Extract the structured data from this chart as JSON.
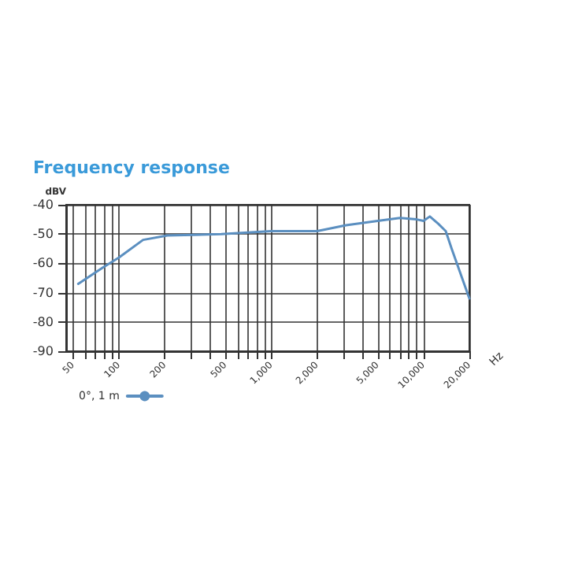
{
  "chart_data": {
    "type": "line",
    "title": "Frequency response",
    "xlabel": "Hz",
    "ylabel": "dBV",
    "log": "x",
    "x": [
      54,
      78,
      100,
      144,
      208,
      470,
      1000,
      2000,
      3100,
      5000,
      7000,
      9000,
      10000,
      11000,
      12500,
      14000,
      15300,
      20000
    ],
    "series": [
      {
        "name": "0°, 1 m",
        "color": "#5b8fc0",
        "values": [
          -67,
          -61.5,
          -58,
          -52,
          -50.5,
          -50,
          -49,
          -49,
          -47,
          -45.5,
          -44.5,
          -45,
          -45.5,
          -44,
          -46.5,
          -49,
          -55,
          -72
        ]
      }
    ],
    "xlim": [
      45,
      20000
    ],
    "xticks": [
      50,
      {
        "value": 60,
        "label": null
      },
      {
        "value": 70,
        "label": null
      },
      {
        "value": 80,
        "label": null
      },
      {
        "value": 90,
        "label": null
      },
      100,
      200,
      {
        "value": 300,
        "label": null
      },
      {
        "value": 400,
        "label": null
      },
      500,
      {
        "value": 600,
        "label": null
      },
      {
        "value": 700,
        "label": null
      },
      {
        "value": 800,
        "label": null
      },
      {
        "value": 900,
        "label": null
      },
      {
        "value": 1000,
        "label": "1,000"
      },
      {
        "value": 2000,
        "label": "2,000"
      },
      {
        "value": 3000,
        "label": null
      },
      {
        "value": 4000,
        "label": null
      },
      {
        "value": 5000,
        "label": "5,000"
      },
      {
        "value": 6000,
        "label": null
      },
      {
        "value": 7000,
        "label": null
      },
      {
        "value": 8000,
        "label": null
      },
      {
        "value": 9000,
        "label": null
      },
      {
        "value": 10000,
        "label": "10,000"
      },
      {
        "value": 20000,
        "label": "20,000"
      }
    ],
    "ylim": [
      -90,
      -40
    ],
    "yticks": [
      -90,
      -80,
      -70,
      -60,
      -50,
      -40
    ],
    "grid": true,
    "legend": "bottom left",
    "marker": "none",
    "line_style": "solid"
  }
}
